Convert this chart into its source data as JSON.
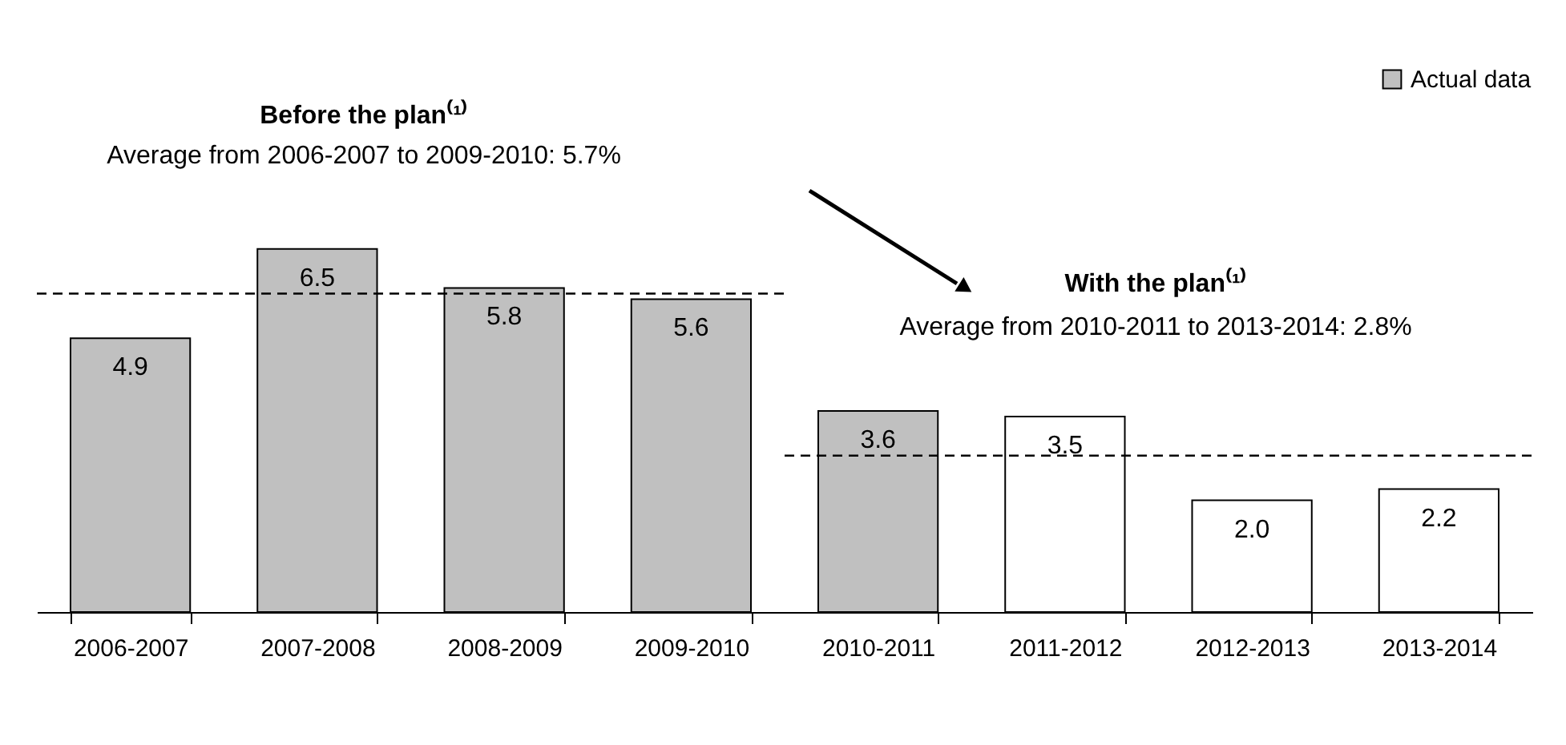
{
  "chart_data": {
    "type": "bar",
    "categories": [
      "2006-2007",
      "2007-2008",
      "2008-2009",
      "2009-2010",
      "2010-2011",
      "2011-2012",
      "2012-2013",
      "2013-2014"
    ],
    "series": [
      {
        "name": "Actual data",
        "color": "#c0c0c0",
        "values": [
          4.9,
          6.5,
          5.8,
          5.6,
          3.6,
          null,
          null,
          null
        ],
        "value_labels": [
          "4.9",
          "6.5",
          "5.8",
          "5.6",
          "3.6",
          null,
          null,
          null
        ]
      },
      {
        "color": "#ffffff",
        "values": [
          null,
          null,
          null,
          null,
          null,
          3.5,
          2.0,
          2.2
        ],
        "value_labels": [
          null,
          null,
          null,
          null,
          null,
          "3.5",
          "2.0",
          "2.2"
        ]
      }
    ],
    "ref_lines": [
      {
        "axis": "y",
        "value": 5.7,
        "line_style": "dashed"
      },
      {
        "axis": "y",
        "value": 2.8,
        "line_style": "dashed"
      }
    ],
    "annotations": [
      "Before the plan⁽¹⁾",
      "Average from 2006-2007 to 2009-2010: 5.7%",
      "With the plan⁽¹⁾",
      "Average from 2010-2011 to 2013-2014: 2.8%"
    ],
    "legend": "top right",
    "tick_labels": "x",
    "grid": false
  }
}
